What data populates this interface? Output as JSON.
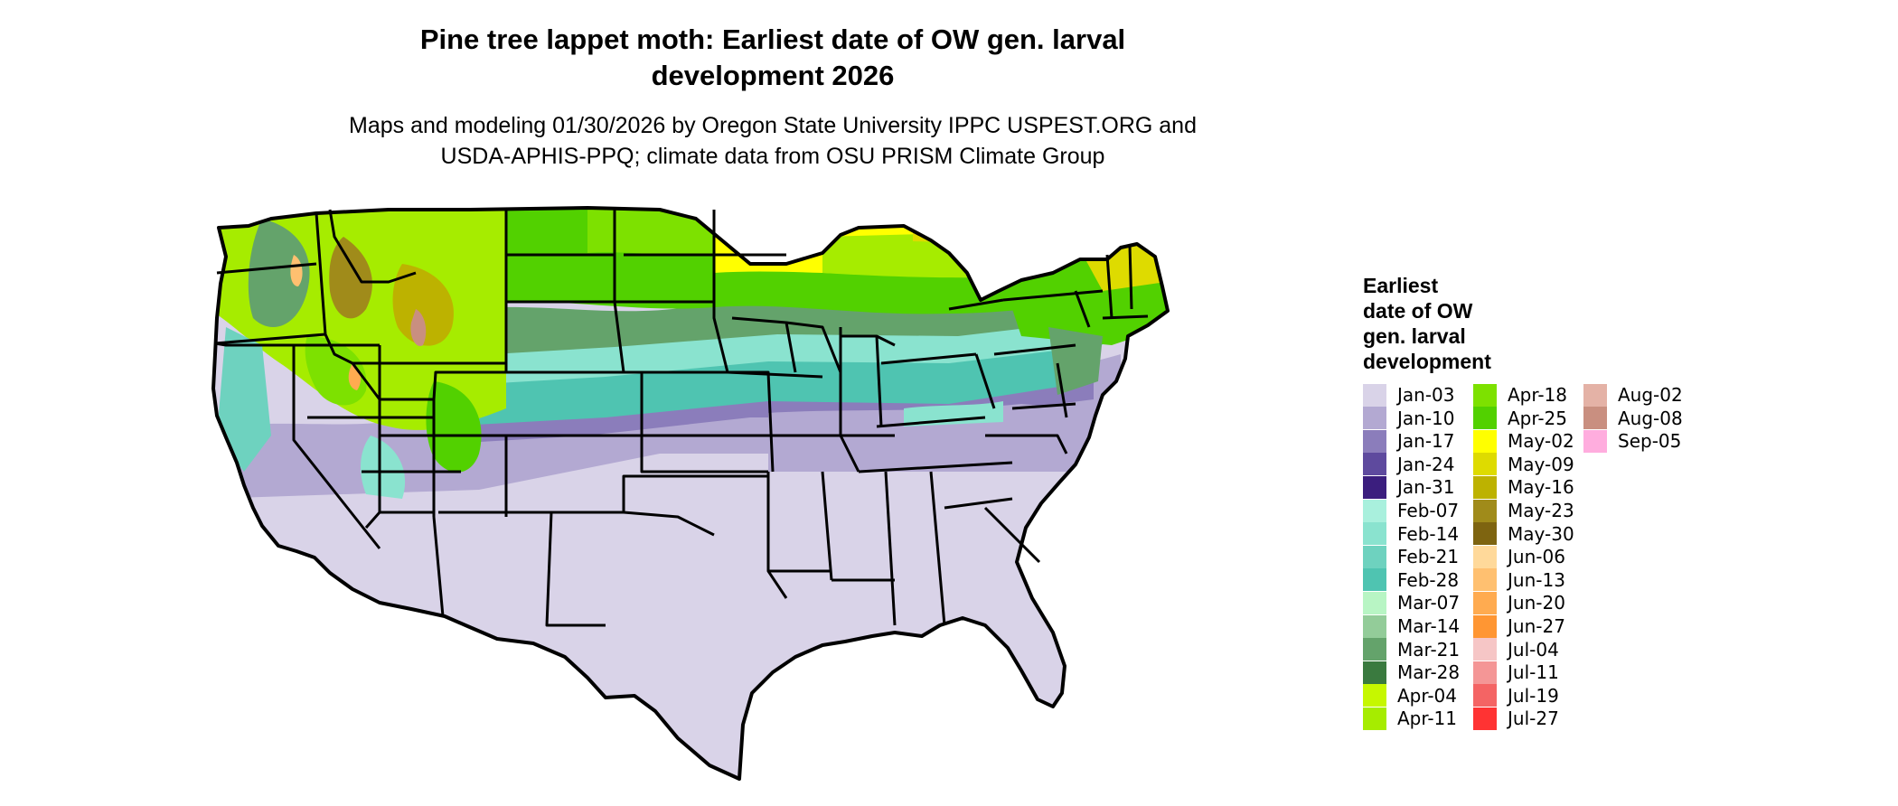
{
  "title_line1": "Pine tree lappet moth: Earliest date of OW gen. larval",
  "title_line2": "development 2026",
  "subtitle_line1": "Maps and modeling 01/30/2026 by Oregon State University IPPC USPEST.ORG and",
  "subtitle_line2": "USDA-APHIS-PPQ; climate data from OSU PRISM Climate Group",
  "legend": {
    "title": "Earliest\ndate of OW\ngen. larval\ndevelopment",
    "columns": [
      [
        {
          "label": "Jan-03",
          "color": "#d9d3e8"
        },
        {
          "label": "Jan-10",
          "color": "#b3a9d2"
        },
        {
          "label": "Jan-17",
          "color": "#8b7dbb"
        },
        {
          "label": "Jan-24",
          "color": "#5e4a9e"
        },
        {
          "label": "Jan-31",
          "color": "#3b1e7e"
        },
        {
          "label": "Feb-07",
          "color": "#a9f0dd"
        },
        {
          "label": "Feb-14",
          "color": "#8ae3cf"
        },
        {
          "label": "Feb-21",
          "color": "#6ed2bf"
        },
        {
          "label": "Feb-28",
          "color": "#4fc4b1"
        },
        {
          "label": "Mar-07",
          "color": "#b8f5c4"
        },
        {
          "label": "Mar-14",
          "color": "#93cc99"
        },
        {
          "label": "Mar-21",
          "color": "#64a36b"
        },
        {
          "label": "Mar-28",
          "color": "#3a7a3f"
        },
        {
          "label": "Apr-04",
          "color": "#c6f700"
        },
        {
          "label": "Apr-11",
          "color": "#a6ec00"
        }
      ],
      [
        {
          "label": "Apr-18",
          "color": "#7de100"
        },
        {
          "label": "Apr-25",
          "color": "#52d100"
        },
        {
          "label": "May-02",
          "color": "#ffff00"
        },
        {
          "label": "May-09",
          "color": "#dedb00"
        },
        {
          "label": "May-16",
          "color": "#bdb200"
        },
        {
          "label": "May-23",
          "color": "#a08b1a"
        },
        {
          "label": "May-30",
          "color": "#7e6410"
        },
        {
          "label": "Jun-06",
          "color": "#ffd99a"
        },
        {
          "label": "Jun-13",
          "color": "#ffc070"
        },
        {
          "label": "Jun-20",
          "color": "#ffab50"
        },
        {
          "label": "Jun-27",
          "color": "#ff9633"
        },
        {
          "label": "Jul-04",
          "color": "#f6c6c6"
        },
        {
          "label": "Jul-11",
          "color": "#f49696"
        },
        {
          "label": "Jul-19",
          "color": "#f46464"
        },
        {
          "label": "Jul-27",
          "color": "#ff3333"
        }
      ],
      [
        {
          "label": "Aug-02",
          "color": "#e4b2a6"
        },
        {
          "label": "Aug-08",
          "color": "#c98f80"
        },
        {
          "label": "Sep-05",
          "color": "#ffadde"
        }
      ]
    ]
  }
}
